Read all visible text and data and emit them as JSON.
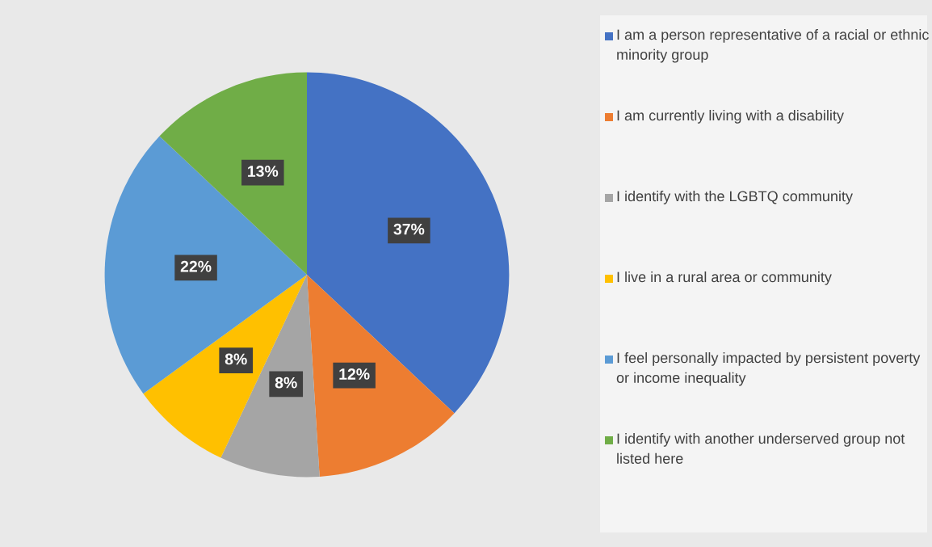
{
  "chart_data": {
    "type": "pie",
    "categories": [
      "I am a person representative of a racial or ethnic minority group",
      "I am currently living with a disability",
      "I identify with the LGBTQ community",
      "I live in a rural area or community",
      "I feel personally impacted by persistent poverty or income inequality",
      "I identify with another underserved group not listed here"
    ],
    "values": [
      37,
      12,
      8,
      8,
      22,
      13
    ],
    "colors": [
      "#4472c4",
      "#ed7d31",
      "#a5a5a5",
      "#ffc000",
      "#5b9bd5",
      "#70ad47"
    ],
    "value_labels": [
      "37%",
      "12%",
      "8%",
      "8%",
      "22%",
      "13%"
    ],
    "legend": "right"
  }
}
